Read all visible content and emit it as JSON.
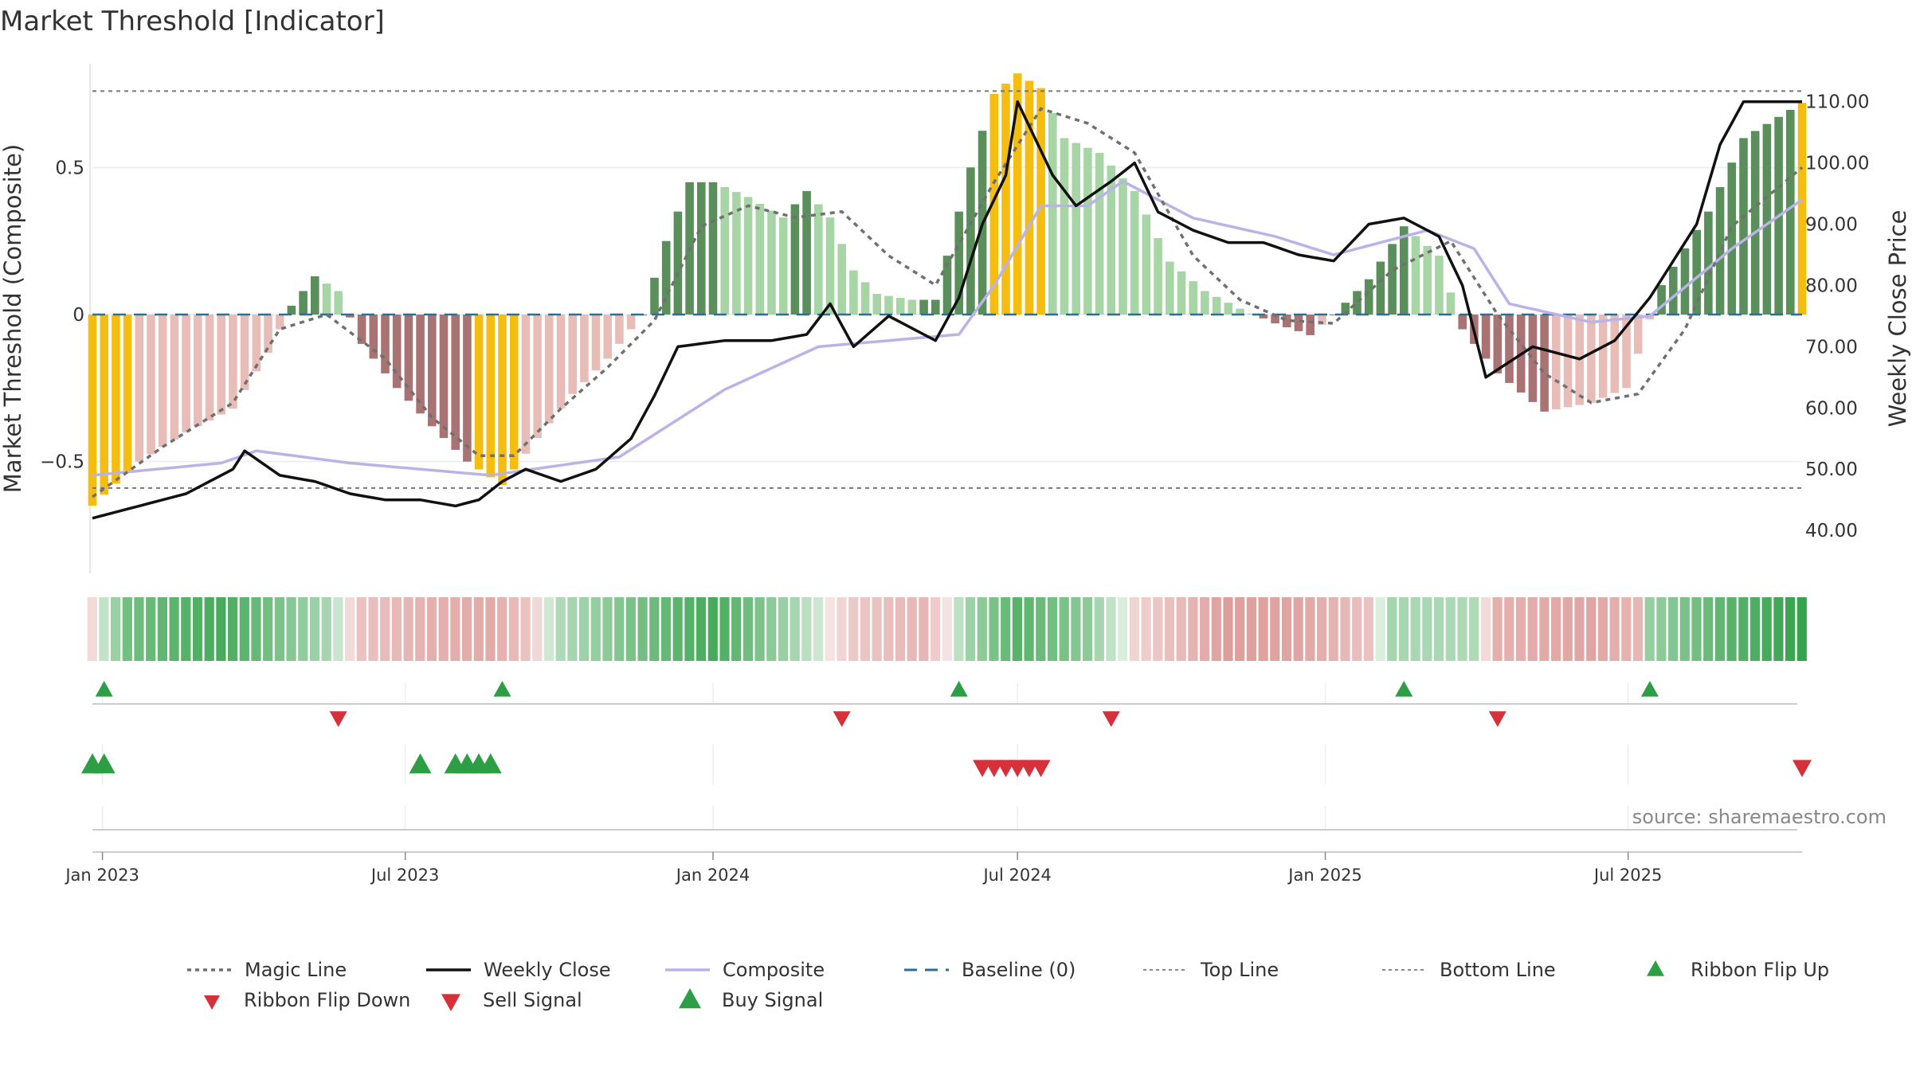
{
  "title": "Market Threshold [Indicator]",
  "source": "source: sharemaestro.com",
  "colors": {
    "magic": "#707070",
    "close": "#111111",
    "composite": "#b9b3e6",
    "baseline": "#2a6f97",
    "bar_dark_green": "#5a8f5c",
    "bar_light_green": "#a8d5a6",
    "bar_dark_red": "#a87372",
    "bar_light_red": "#e8bdb8",
    "bar_extreme": "#f5bd0f",
    "buy": "#2e9e44",
    "sell": "#d6303b"
  },
  "chart_data": [
    {
      "type": "bar",
      "panel": "main",
      "ylabel": "Market Threshold (Composite)",
      "y2label": "Weekly Close Price",
      "ylim": [
        -0.88,
        0.88
      ],
      "y2lim": [
        33.0,
        117.5
      ],
      "yticks": [
        {
          "v": 0.5,
          "label": "0.5"
        },
        {
          "v": 0,
          "label": "0"
        },
        {
          "v": -0.5,
          "label": "−0.5"
        }
      ],
      "y2ticks": [
        "40.00",
        "50.00",
        "60.00",
        "70.00",
        "80.00",
        "90.00",
        "100.00",
        "110.00"
      ],
      "xlim": [
        "2022-12-26",
        "2025-10-13"
      ],
      "xticks": [
        {
          "date": "2023-01-01",
          "label": "Jan 2023"
        },
        {
          "date": "2023-07-01",
          "label": "Jul 2023"
        },
        {
          "date": "2024-01-01",
          "label": "Jan 2024"
        },
        {
          "date": "2024-07-01",
          "label": "Jul 2024"
        },
        {
          "date": "2025-01-01",
          "label": "Jan 2025"
        },
        {
          "date": "2025-07-01",
          "label": "Jul 2025"
        }
      ],
      "top_line": 0.76,
      "bottom_line": -0.59,
      "baseline": 0,
      "composite_keys": [
        [
          "2022-12-26",
          -0.65
        ],
        [
          "2023-01-23",
          -0.5
        ],
        [
          "2023-02-20",
          -0.4
        ],
        [
          "2023-03-20",
          -0.32
        ],
        [
          "2023-04-10",
          -0.13
        ],
        [
          "2023-04-24",
          0.03
        ],
        [
          "2023-05-08",
          0.13
        ],
        [
          "2023-05-22",
          0.08
        ],
        [
          "2023-06-05",
          -0.1
        ],
        [
          "2023-06-26",
          -0.25
        ],
        [
          "2023-07-17",
          -0.38
        ],
        [
          "2023-08-07",
          -0.5
        ],
        [
          "2023-08-28",
          -0.58
        ],
        [
          "2023-09-18",
          -0.42
        ],
        [
          "2023-10-09",
          -0.27
        ],
        [
          "2023-10-30",
          -0.15
        ],
        [
          "2023-11-20",
          0.0
        ],
        [
          "2023-12-04",
          0.25
        ],
        [
          "2023-12-18",
          0.45
        ],
        [
          "2024-01-01",
          0.45
        ],
        [
          "2024-01-22",
          0.4
        ],
        [
          "2024-02-12",
          0.33
        ],
        [
          "2024-02-26",
          0.42
        ],
        [
          "2024-03-11",
          0.33
        ],
        [
          "2024-03-25",
          0.15
        ],
        [
          "2024-04-08",
          0.07
        ],
        [
          "2024-04-29",
          0.05
        ],
        [
          "2024-05-13",
          0.05
        ],
        [
          "2024-06-03",
          0.5
        ],
        [
          "2024-06-17",
          0.75
        ],
        [
          "2024-07-01",
          0.82
        ],
        [
          "2024-07-15",
          0.77
        ],
        [
          "2024-07-29",
          0.6
        ],
        [
          "2024-08-19",
          0.55
        ],
        [
          "2024-09-09",
          0.42
        ],
        [
          "2024-09-30",
          0.18
        ],
        [
          "2024-10-21",
          0.08
        ],
        [
          "2024-11-11",
          0.02
        ],
        [
          "2024-12-02",
          -0.03
        ],
        [
          "2024-12-23",
          -0.07
        ],
        [
          "2025-01-06",
          0.0
        ],
        [
          "2025-01-27",
          0.12
        ],
        [
          "2025-02-17",
          0.3
        ],
        [
          "2025-03-10",
          0.2
        ],
        [
          "2025-03-24",
          -0.05
        ],
        [
          "2025-04-14",
          -0.2
        ],
        [
          "2025-05-12",
          -0.33
        ],
        [
          "2025-06-09",
          -0.3
        ],
        [
          "2025-06-30",
          -0.25
        ],
        [
          "2025-07-21",
          0.1
        ],
        [
          "2025-08-18",
          0.35
        ],
        [
          "2025-09-08",
          0.6
        ],
        [
          "2025-10-13",
          0.72
        ]
      ],
      "close_keys": [
        [
          "2022-12-26",
          42
        ],
        [
          "2023-01-23",
          44
        ],
        [
          "2023-02-20",
          46
        ],
        [
          "2023-03-20",
          50
        ],
        [
          "2023-03-27",
          53
        ],
        [
          "2023-04-17",
          49
        ],
        [
          "2023-05-08",
          48
        ],
        [
          "2023-05-29",
          46
        ],
        [
          "2023-06-19",
          45
        ],
        [
          "2023-07-10",
          45
        ],
        [
          "2023-07-31",
          44
        ],
        [
          "2023-08-14",
          45
        ],
        [
          "2023-08-28",
          48
        ],
        [
          "2023-09-11",
          50
        ],
        [
          "2023-10-02",
          48
        ],
        [
          "2023-10-23",
          50
        ],
        [
          "2023-11-13",
          55
        ],
        [
          "2023-11-27",
          62
        ],
        [
          "2023-12-11",
          70
        ],
        [
          "2024-01-08",
          71
        ],
        [
          "2024-02-05",
          71
        ],
        [
          "2024-02-26",
          72
        ],
        [
          "2024-03-11",
          77
        ],
        [
          "2024-03-25",
          70
        ],
        [
          "2024-04-15",
          75
        ],
        [
          "2024-05-13",
          71
        ],
        [
          "2024-05-27",
          78
        ],
        [
          "2024-06-10",
          90
        ],
        [
          "2024-06-24",
          98
        ],
        [
          "2024-07-01",
          110
        ],
        [
          "2024-07-22",
          98
        ],
        [
          "2024-08-05",
          93
        ],
        [
          "2024-08-26",
          97
        ],
        [
          "2024-09-09",
          100
        ],
        [
          "2024-09-23",
          92
        ],
        [
          "2024-10-14",
          89
        ],
        [
          "2024-11-04",
          87
        ],
        [
          "2024-11-25",
          87
        ],
        [
          "2024-12-16",
          85
        ],
        [
          "2025-01-06",
          84
        ],
        [
          "2025-01-27",
          90
        ],
        [
          "2025-02-17",
          91
        ],
        [
          "2025-03-10",
          88
        ],
        [
          "2025-03-24",
          80
        ],
        [
          "2025-04-07",
          65
        ],
        [
          "2025-05-05",
          70
        ],
        [
          "2025-06-02",
          68
        ],
        [
          "2025-06-23",
          71
        ],
        [
          "2025-07-14",
          78
        ],
        [
          "2025-08-11",
          90
        ],
        [
          "2025-08-25",
          103
        ],
        [
          "2025-09-08",
          110
        ],
        [
          "2025-10-13",
          110
        ]
      ],
      "magic_keys": [
        [
          "2022-12-26",
          -0.62
        ],
        [
          "2023-02-06",
          -0.45
        ],
        [
          "2023-03-20",
          -0.3
        ],
        [
          "2023-04-17",
          -0.05
        ],
        [
          "2023-05-15",
          0.0
        ],
        [
          "2023-06-19",
          -0.15
        ],
        [
          "2023-07-17",
          -0.35
        ],
        [
          "2023-08-14",
          -0.48
        ],
        [
          "2023-09-04",
          -0.48
        ],
        [
          "2023-10-02",
          -0.32
        ],
        [
          "2023-10-30",
          -0.18
        ],
        [
          "2023-11-27",
          -0.02
        ],
        [
          "2023-12-25",
          0.3
        ],
        [
          "2024-01-22",
          0.37
        ],
        [
          "2024-02-19",
          0.33
        ],
        [
          "2024-03-18",
          0.35
        ],
        [
          "2024-04-15",
          0.2
        ],
        [
          "2024-05-13",
          0.1
        ],
        [
          "2024-06-17",
          0.45
        ],
        [
          "2024-07-15",
          0.7
        ],
        [
          "2024-08-12",
          0.65
        ],
        [
          "2024-09-09",
          0.55
        ],
        [
          "2024-10-14",
          0.2
        ],
        [
          "2024-11-11",
          0.05
        ],
        [
          "2024-12-09",
          -0.02
        ],
        [
          "2025-01-06",
          -0.03
        ],
        [
          "2025-02-10",
          0.15
        ],
        [
          "2025-03-17",
          0.25
        ],
        [
          "2025-04-14",
          0.0
        ],
        [
          "2025-05-12",
          -0.2
        ],
        [
          "2025-06-09",
          -0.3
        ],
        [
          "2025-07-07",
          -0.27
        ],
        [
          "2025-08-04",
          -0.05
        ],
        [
          "2025-09-01",
          0.3
        ],
        [
          "2025-10-13",
          0.5
        ]
      ],
      "composite_line_keys": [
        [
          "2022-12-26",
          49
        ],
        [
          "2023-03-13",
          51
        ],
        [
          "2023-04-03",
          53
        ],
        [
          "2023-05-29",
          51
        ],
        [
          "2023-08-21",
          49
        ],
        [
          "2023-11-06",
          52
        ],
        [
          "2024-01-08",
          63
        ],
        [
          "2024-03-04",
          70
        ],
        [
          "2024-05-27",
          72
        ],
        [
          "2024-06-17",
          80
        ],
        [
          "2024-07-15",
          93
        ],
        [
          "2024-08-12",
          93
        ],
        [
          "2024-09-02",
          97
        ],
        [
          "2024-10-14",
          91
        ],
        [
          "2024-12-02",
          88
        ],
        [
          "2025-01-06",
          85
        ],
        [
          "2025-03-03",
          89
        ],
        [
          "2025-03-31",
          86
        ],
        [
          "2025-04-21",
          77
        ],
        [
          "2025-06-09",
          74
        ],
        [
          "2025-07-14",
          75
        ],
        [
          "2025-09-01",
          86
        ],
        [
          "2025-10-13",
          94
        ]
      ]
    },
    {
      "type": "heatmap",
      "panel": "ribbon",
      "keys": [
        [
          "2022-12-26",
          -0.1
        ],
        [
          "2023-01-16",
          0.6
        ],
        [
          "2023-03-13",
          0.85
        ],
        [
          "2023-05-15",
          0.3
        ],
        [
          "2023-06-05",
          -0.3
        ],
        [
          "2023-07-17",
          -0.45
        ],
        [
          "2023-08-21",
          -0.5
        ],
        [
          "2023-09-11",
          -0.3
        ],
        [
          "2023-10-02",
          0.25
        ],
        [
          "2023-11-13",
          0.55
        ],
        [
          "2024-01-01",
          0.85
        ],
        [
          "2024-02-19",
          0.3
        ],
        [
          "2024-03-25",
          -0.25
        ],
        [
          "2024-05-06",
          -0.4
        ],
        [
          "2024-06-03",
          0.35
        ],
        [
          "2024-07-01",
          0.75
        ],
        [
          "2024-08-12",
          0.45
        ],
        [
          "2024-09-09",
          -0.15
        ],
        [
          "2024-11-04",
          -0.6
        ],
        [
          "2024-12-16",
          -0.55
        ],
        [
          "2025-01-27",
          -0.3
        ],
        [
          "2025-02-10",
          0.3
        ],
        [
          "2025-03-31",
          0.25
        ],
        [
          "2025-04-14",
          -0.45
        ],
        [
          "2025-06-09",
          -0.55
        ],
        [
          "2025-07-07",
          -0.4
        ],
        [
          "2025-07-14",
          0.4
        ],
        [
          "2025-09-01",
          0.75
        ],
        [
          "2025-10-13",
          0.95
        ]
      ]
    },
    {
      "type": "scatter",
      "panel": "ribbon_flips",
      "up": [
        "2023-01-02",
        "2023-08-28",
        "2024-05-27",
        "2025-02-17",
        "2025-07-14"
      ],
      "down": [
        "2023-05-22",
        "2024-03-18",
        "2024-08-26",
        "2025-04-14"
      ]
    },
    {
      "type": "scatter",
      "panel": "signals",
      "buy": [
        "2022-12-26",
        "2023-01-02",
        "2023-07-10",
        "2023-07-31",
        "2023-08-07",
        "2023-08-14",
        "2023-08-21"
      ],
      "sell": [
        "2024-06-10",
        "2024-06-17",
        "2024-06-24",
        "2024-07-01",
        "2024-07-08",
        "2024-07-15",
        "2025-10-13"
      ]
    }
  ],
  "legend": [
    {
      "label": "Magic Line",
      "key": "magic"
    },
    {
      "label": "Weekly Close",
      "key": "close"
    },
    {
      "label": "Composite",
      "key": "composite"
    },
    {
      "label": "Baseline (0)",
      "key": "baseline"
    },
    {
      "label": "Top Line",
      "key": "top"
    },
    {
      "label": "Bottom Line",
      "key": "bottom"
    },
    {
      "label": "Ribbon Flip Up",
      "key": "flipup"
    },
    {
      "label": "Ribbon Flip Down",
      "key": "flipdown"
    },
    {
      "label": "Sell Signal",
      "key": "sell"
    },
    {
      "label": "Buy Signal",
      "key": "buy"
    }
  ]
}
